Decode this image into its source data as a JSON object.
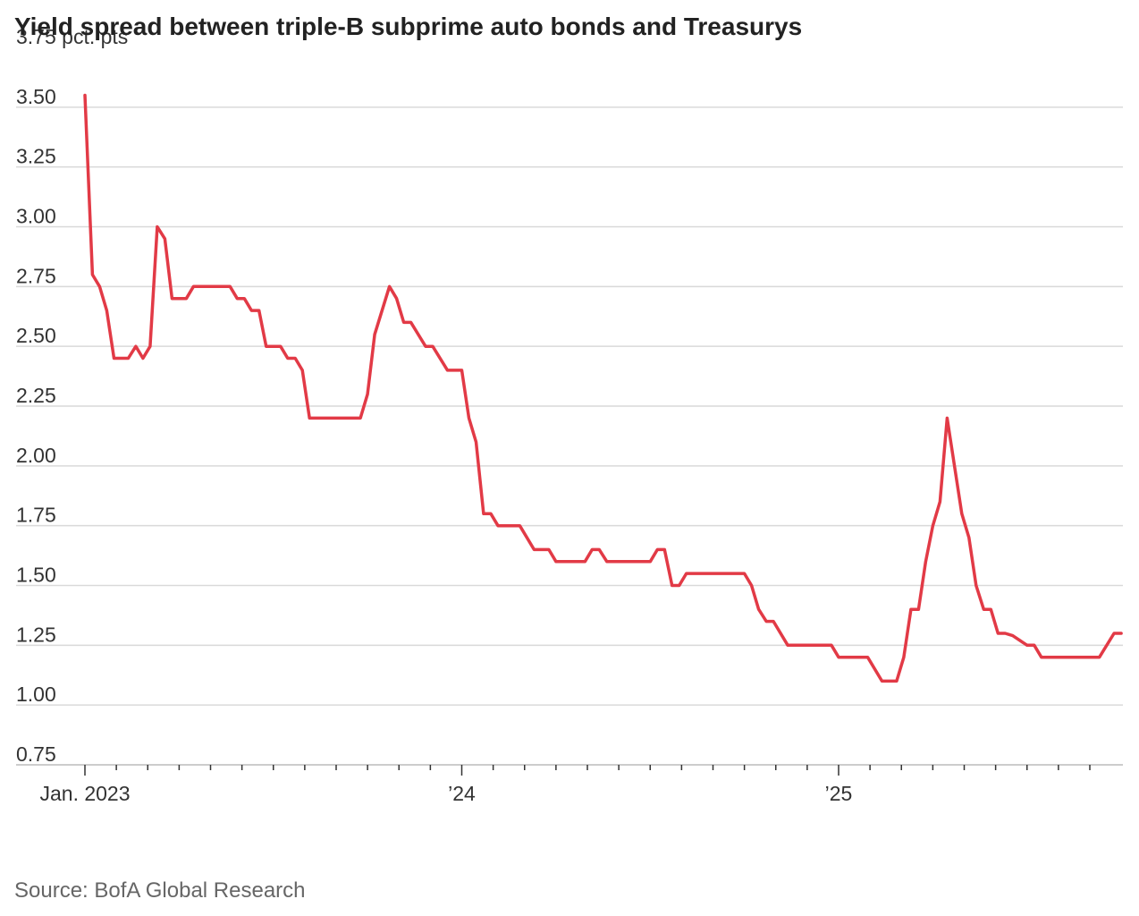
{
  "chart_data": {
    "type": "line",
    "title": "Yield spread between triple-B subprime auto bonds and Treasurys",
    "unit_label": "3.75 pct. pts",
    "ylim": [
      0.75,
      3.75
    ],
    "y_ticks": [
      "0.75",
      "1.00",
      "1.25",
      "1.50",
      "1.75",
      "2.00",
      "2.25",
      "2.50",
      "2.75",
      "3.00",
      "3.25",
      "3.50"
    ],
    "x_range": [
      "2023-01",
      "2025-09"
    ],
    "x_tick_labels": [
      {
        "at": 2023.0,
        "label": "Jan. 2023"
      },
      {
        "at": 2024.0,
        "label": "’24"
      },
      {
        "at": 2025.0,
        "label": "’25"
      }
    ],
    "grid": true,
    "color": "#e23a46",
    "series": [
      {
        "points": [
          [
            2023.0,
            3.55
          ],
          [
            2023.02,
            2.8
          ],
          [
            2023.039,
            2.75
          ],
          [
            2023.058,
            2.65
          ],
          [
            2023.077,
            2.45
          ],
          [
            2023.115,
            2.45
          ],
          [
            2023.135,
            2.5
          ],
          [
            2023.154,
            2.45
          ],
          [
            2023.173,
            2.5
          ],
          [
            2023.192,
            3.0
          ],
          [
            2023.212,
            2.95
          ],
          [
            2023.231,
            2.7
          ],
          [
            2023.269,
            2.7
          ],
          [
            2023.288,
            2.75
          ],
          [
            2023.385,
            2.75
          ],
          [
            2023.404,
            2.7
          ],
          [
            2023.423,
            2.7
          ],
          [
            2023.442,
            2.65
          ],
          [
            2023.462,
            2.65
          ],
          [
            2023.481,
            2.5
          ],
          [
            2023.519,
            2.5
          ],
          [
            2023.538,
            2.45
          ],
          [
            2023.558,
            2.45
          ],
          [
            2023.577,
            2.4
          ],
          [
            2023.596,
            2.2
          ],
          [
            2023.731,
            2.2
          ],
          [
            2023.75,
            2.3
          ],
          [
            2023.769,
            2.55
          ],
          [
            2023.808,
            2.75
          ],
          [
            2023.827,
            2.7
          ],
          [
            2023.846,
            2.6
          ],
          [
            2023.865,
            2.6
          ],
          [
            2023.904,
            2.5
          ],
          [
            2023.923,
            2.5
          ],
          [
            2023.962,
            2.4
          ],
          [
            2024.0,
            2.4
          ],
          [
            2024.019,
            2.2
          ],
          [
            2024.038,
            2.1
          ],
          [
            2024.058,
            1.8
          ],
          [
            2024.077,
            1.8
          ],
          [
            2024.096,
            1.75
          ],
          [
            2024.154,
            1.75
          ],
          [
            2024.192,
            1.65
          ],
          [
            2024.231,
            1.65
          ],
          [
            2024.25,
            1.6
          ],
          [
            2024.327,
            1.6
          ],
          [
            2024.346,
            1.65
          ],
          [
            2024.365,
            1.65
          ],
          [
            2024.385,
            1.6
          ],
          [
            2024.5,
            1.6
          ],
          [
            2024.519,
            1.65
          ],
          [
            2024.538,
            1.65
          ],
          [
            2024.558,
            1.5
          ],
          [
            2024.577,
            1.5
          ],
          [
            2024.596,
            1.55
          ],
          [
            2024.75,
            1.55
          ],
          [
            2024.769,
            1.5
          ],
          [
            2024.788,
            1.4
          ],
          [
            2024.808,
            1.35
          ],
          [
            2024.827,
            1.35
          ],
          [
            2024.865,
            1.25
          ],
          [
            2024.981,
            1.25
          ],
          [
            2025.0,
            1.2
          ],
          [
            2025.077,
            1.2
          ],
          [
            2025.115,
            1.1
          ],
          [
            2025.154,
            1.1
          ],
          [
            2025.173,
            1.2
          ],
          [
            2025.192,
            1.4
          ],
          [
            2025.212,
            1.4
          ],
          [
            2025.231,
            1.6
          ],
          [
            2025.25,
            1.75
          ],
          [
            2025.269,
            1.85
          ],
          [
            2025.288,
            2.2
          ],
          [
            2025.327,
            1.8
          ],
          [
            2025.346,
            1.7
          ],
          [
            2025.365,
            1.5
          ],
          [
            2025.385,
            1.4
          ],
          [
            2025.404,
            1.4
          ],
          [
            2025.423,
            1.3
          ],
          [
            2025.442,
            1.3
          ],
          [
            2025.462,
            1.29
          ],
          [
            2025.5,
            1.25
          ],
          [
            2025.519,
            1.25
          ],
          [
            2025.538,
            1.2
          ],
          [
            2025.692,
            1.2
          ],
          [
            2025.731,
            1.3
          ],
          [
            2025.75,
            1.3
          ]
        ]
      }
    ]
  },
  "source": "Source: BofA Global Research"
}
